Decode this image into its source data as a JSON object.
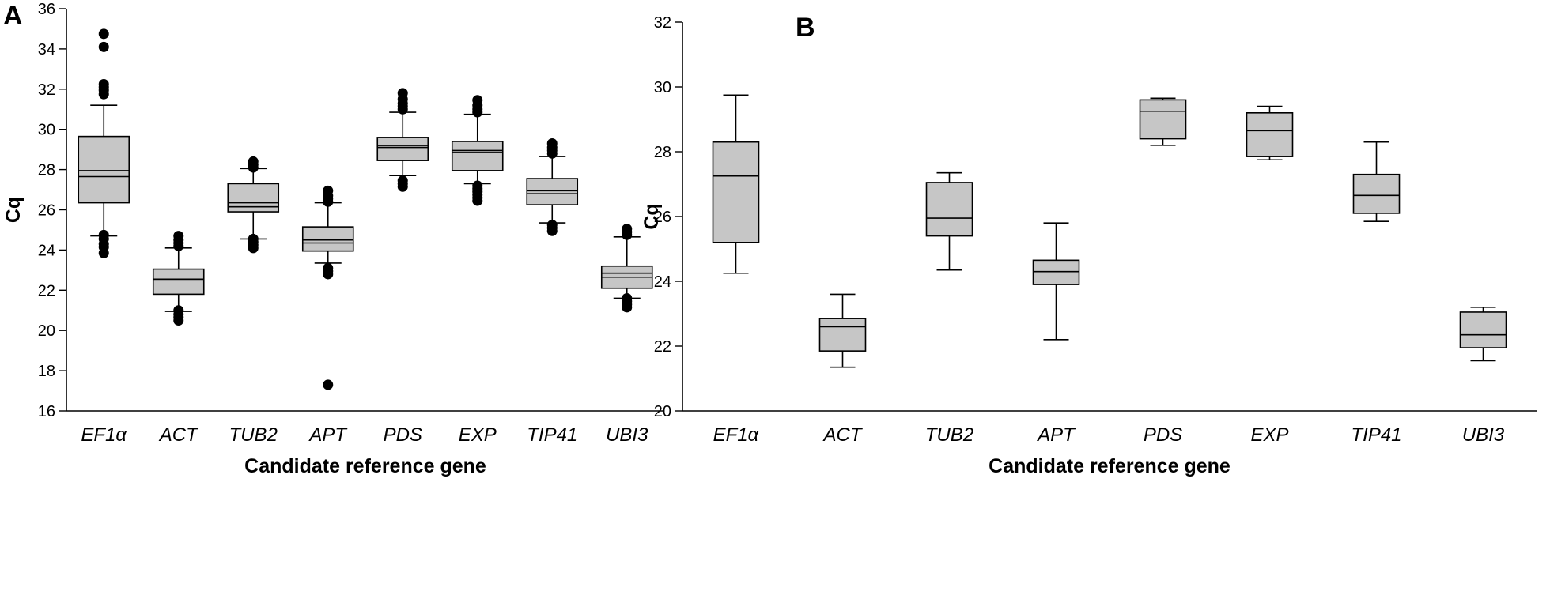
{
  "chart_data": [
    {
      "type": "box",
      "panel": "A",
      "ylabel": "Cq",
      "xlabel": "Candidate reference gene",
      "ylim": [
        16,
        36
      ],
      "yticks": [
        16,
        18,
        20,
        22,
        24,
        26,
        28,
        30,
        32,
        34,
        36
      ],
      "categories": [
        "EF1α",
        "ACT",
        "TUB2",
        "APT",
        "PDS",
        "EXP",
        "TIP41",
        "UBI3"
      ],
      "boxes": [
        {
          "whisker_low": 24.7,
          "q1": 26.35,
          "median": 27.65,
          "mean": 27.95,
          "q3": 29.65,
          "whisker_high": 31.2,
          "outliers": [
            23.85,
            24.15,
            24.3,
            24.55,
            24.75,
            31.75,
            31.95,
            32.1,
            32.25,
            34.1,
            34.75
          ]
        },
        {
          "whisker_low": 20.95,
          "q1": 21.8,
          "median": 22.55,
          "mean": 22.55,
          "q3": 23.05,
          "whisker_high": 24.1,
          "outliers": [
            20.5,
            20.65,
            20.8,
            21.0,
            24.2,
            24.35,
            24.5,
            24.7
          ]
        },
        {
          "whisker_low": 24.55,
          "q1": 25.9,
          "median": 26.15,
          "mean": 26.35,
          "q3": 27.3,
          "whisker_high": 28.05,
          "outliers": [
            24.1,
            24.25,
            24.4,
            24.55,
            28.1,
            28.25,
            28.4
          ]
        },
        {
          "whisker_low": 23.35,
          "q1": 23.95,
          "median": 24.35,
          "mean": 24.5,
          "q3": 25.15,
          "whisker_high": 26.35,
          "outliers": [
            17.3,
            22.8,
            22.95,
            23.1,
            26.4,
            26.55,
            26.7,
            26.95
          ]
        },
        {
          "whisker_low": 27.7,
          "q1": 28.45,
          "median": 29.1,
          "mean": 29.2,
          "q3": 29.6,
          "whisker_high": 30.85,
          "outliers": [
            27.15,
            27.3,
            27.45,
            31.0,
            31.15,
            31.3,
            31.5,
            31.8
          ]
        },
        {
          "whisker_low": 27.3,
          "q1": 27.95,
          "median": 28.85,
          "mean": 28.95,
          "q3": 29.4,
          "whisker_high": 30.75,
          "outliers": [
            26.45,
            26.6,
            26.75,
            26.9,
            27.05,
            27.2,
            30.85,
            31.0,
            31.2,
            31.45
          ]
        },
        {
          "whisker_low": 25.35,
          "q1": 26.25,
          "median": 26.8,
          "mean": 26.95,
          "q3": 27.55,
          "whisker_high": 28.65,
          "outliers": [
            24.95,
            25.1,
            25.25,
            28.8,
            28.95,
            29.1,
            29.3
          ]
        },
        {
          "whisker_low": 21.6,
          "q1": 22.1,
          "median": 22.65,
          "mean": 22.85,
          "q3": 23.2,
          "whisker_high": 24.65,
          "outliers": [
            21.15,
            21.3,
            21.45,
            21.6,
            24.75,
            24.9,
            25.05
          ]
        }
      ]
    },
    {
      "type": "box",
      "panel": "B",
      "ylabel": "Cq",
      "xlabel": "Candidate reference gene",
      "ylim": [
        20,
        32
      ],
      "yticks": [
        20,
        22,
        24,
        26,
        28,
        30,
        32
      ],
      "categories": [
        "EF1α",
        "ACT",
        "TUB2",
        "APT",
        "PDS",
        "EXP",
        "TIP41",
        "UBI3"
      ],
      "boxes": [
        {
          "whisker_low": 24.25,
          "q1": 25.2,
          "median": 27.25,
          "q3": 28.3,
          "whisker_high": 29.75,
          "outliers": []
        },
        {
          "whisker_low": 21.35,
          "q1": 21.85,
          "median": 22.6,
          "q3": 22.85,
          "whisker_high": 23.6,
          "outliers": []
        },
        {
          "whisker_low": 24.35,
          "q1": 25.4,
          "median": 25.95,
          "q3": 27.05,
          "whisker_high": 27.35,
          "outliers": []
        },
        {
          "whisker_low": 22.2,
          "q1": 23.9,
          "median": 24.3,
          "q3": 24.65,
          "whisker_high": 25.8,
          "outliers": []
        },
        {
          "whisker_low": 28.2,
          "q1": 28.4,
          "median": 29.25,
          "q3": 29.6,
          "whisker_high": 29.65,
          "outliers": []
        },
        {
          "whisker_low": 27.75,
          "q1": 27.85,
          "median": 28.65,
          "q3": 29.2,
          "whisker_high": 29.4,
          "outliers": []
        },
        {
          "whisker_low": 25.85,
          "q1": 26.1,
          "median": 26.65,
          "q3": 27.3,
          "whisker_high": 28.3,
          "outliers": []
        },
        {
          "whisker_low": 21.55,
          "q1": 21.95,
          "median": 22.35,
          "q3": 23.05,
          "whisker_high": 23.2,
          "outliers": []
        }
      ]
    }
  ]
}
